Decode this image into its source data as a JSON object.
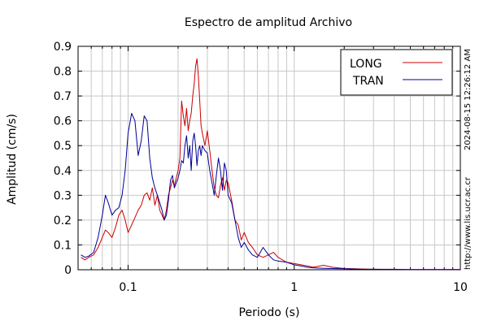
{
  "chart_data": {
    "type": "line",
    "title": "Espectro de amplitud Archivo",
    "xlabel": "Periodo (s)",
    "ylabel": "Amplitud (cm/s)",
    "x_scale": "log",
    "xlim": [
      0.05,
      10
    ],
    "ylim": [
      0,
      0.9
    ],
    "grid": true,
    "legend_position": "top-right",
    "x_ticks": [
      {
        "value": 0.1,
        "label": "0.1"
      },
      {
        "value": 1,
        "label": "1"
      },
      {
        "value": 10,
        "label": "10"
      }
    ],
    "y_ticks": [
      {
        "value": 0,
        "label": "0"
      },
      {
        "value": 0.1,
        "label": "0.1"
      },
      {
        "value": 0.2,
        "label": "0.2"
      },
      {
        "value": 0.3,
        "label": "0.3"
      },
      {
        "value": 0.4,
        "label": "0.4"
      },
      {
        "value": 0.5,
        "label": "0.5"
      },
      {
        "value": 0.6,
        "label": "0.6"
      },
      {
        "value": 0.7,
        "label": "0.7"
      },
      {
        "value": 0.8,
        "label": "0.8"
      },
      {
        "value": 0.9,
        "label": "0.9"
      }
    ],
    "side_timestamp": "2024-08-15 12:26:12 AM",
    "side_url": "http://www.lis.ucr.ac.cr",
    "series": [
      {
        "name": "LONG",
        "color": "#cc0000",
        "x": [
          0.052,
          0.055,
          0.058,
          0.062,
          0.066,
          0.07,
          0.073,
          0.076,
          0.08,
          0.084,
          0.088,
          0.092,
          0.096,
          0.1,
          0.105,
          0.11,
          0.115,
          0.12,
          0.125,
          0.13,
          0.135,
          0.14,
          0.145,
          0.15,
          0.155,
          0.16,
          0.165,
          0.17,
          0.175,
          0.18,
          0.185,
          0.19,
          0.2,
          0.205,
          0.21,
          0.215,
          0.22,
          0.225,
          0.23,
          0.235,
          0.24,
          0.245,
          0.25,
          0.255,
          0.26,
          0.265,
          0.27,
          0.275,
          0.28,
          0.29,
          0.3,
          0.31,
          0.32,
          0.33,
          0.34,
          0.35,
          0.36,
          0.37,
          0.38,
          0.39,
          0.4,
          0.42,
          0.44,
          0.46,
          0.48,
          0.5,
          0.53,
          0.56,
          0.6,
          0.65,
          0.7,
          0.75,
          0.8,
          0.9,
          1.0,
          1.1,
          1.2,
          1.3,
          1.5,
          1.7,
          2.0,
          2.3,
          2.6,
          3.0,
          4.0,
          5.0,
          7.0,
          10.0
        ],
        "values": [
          0.05,
          0.04,
          0.05,
          0.06,
          0.09,
          0.13,
          0.16,
          0.15,
          0.13,
          0.17,
          0.22,
          0.24,
          0.2,
          0.15,
          0.18,
          0.21,
          0.24,
          0.26,
          0.3,
          0.31,
          0.28,
          0.33,
          0.26,
          0.3,
          0.24,
          0.22,
          0.2,
          0.24,
          0.3,
          0.33,
          0.36,
          0.34,
          0.4,
          0.45,
          0.68,
          0.62,
          0.58,
          0.65,
          0.56,
          0.6,
          0.63,
          0.7,
          0.75,
          0.82,
          0.85,
          0.78,
          0.68,
          0.58,
          0.55,
          0.5,
          0.56,
          0.48,
          0.4,
          0.33,
          0.3,
          0.29,
          0.34,
          0.37,
          0.32,
          0.36,
          0.35,
          0.28,
          0.2,
          0.18,
          0.12,
          0.15,
          0.11,
          0.09,
          0.06,
          0.05,
          0.06,
          0.07,
          0.05,
          0.03,
          0.025,
          0.02,
          0.015,
          0.01,
          0.018,
          0.01,
          0.005,
          0.004,
          0.003,
          0.002,
          0.002,
          0.001,
          0.001,
          0.001
        ]
      },
      {
        "name": "TRAN",
        "color": "#000099",
        "x": [
          0.052,
          0.055,
          0.058,
          0.062,
          0.066,
          0.07,
          0.073,
          0.076,
          0.08,
          0.084,
          0.088,
          0.092,
          0.096,
          0.1,
          0.105,
          0.11,
          0.115,
          0.12,
          0.125,
          0.13,
          0.135,
          0.14,
          0.145,
          0.15,
          0.155,
          0.16,
          0.165,
          0.17,
          0.175,
          0.18,
          0.185,
          0.19,
          0.2,
          0.205,
          0.21,
          0.215,
          0.22,
          0.225,
          0.23,
          0.235,
          0.24,
          0.245,
          0.25,
          0.255,
          0.26,
          0.265,
          0.27,
          0.275,
          0.28,
          0.29,
          0.3,
          0.31,
          0.32,
          0.33,
          0.34,
          0.35,
          0.36,
          0.37,
          0.38,
          0.39,
          0.4,
          0.42,
          0.44,
          0.46,
          0.48,
          0.5,
          0.53,
          0.56,
          0.6,
          0.65,
          0.7,
          0.75,
          0.8,
          0.9,
          1.0,
          1.1,
          1.2,
          1.3,
          1.5,
          1.7,
          2.0,
          2.3,
          2.6,
          3.0,
          4.0,
          5.0,
          7.0,
          10.0
        ],
        "values": [
          0.06,
          0.05,
          0.055,
          0.07,
          0.13,
          0.22,
          0.3,
          0.27,
          0.22,
          0.24,
          0.25,
          0.3,
          0.4,
          0.55,
          0.63,
          0.6,
          0.46,
          0.52,
          0.62,
          0.6,
          0.45,
          0.37,
          0.33,
          0.3,
          0.27,
          0.24,
          0.2,
          0.22,
          0.28,
          0.36,
          0.38,
          0.33,
          0.37,
          0.4,
          0.44,
          0.43,
          0.5,
          0.54,
          0.45,
          0.5,
          0.4,
          0.52,
          0.55,
          0.5,
          0.42,
          0.48,
          0.5,
          0.46,
          0.5,
          0.48,
          0.47,
          0.4,
          0.35,
          0.3,
          0.38,
          0.45,
          0.4,
          0.32,
          0.43,
          0.4,
          0.3,
          0.27,
          0.2,
          0.13,
          0.09,
          0.11,
          0.08,
          0.06,
          0.05,
          0.09,
          0.06,
          0.04,
          0.035,
          0.03,
          0.02,
          0.015,
          0.01,
          0.008,
          0.006,
          0.005,
          0.004,
          0.003,
          0.002,
          0.002,
          0.001,
          0.001,
          0.001,
          0.001
        ]
      }
    ]
  }
}
